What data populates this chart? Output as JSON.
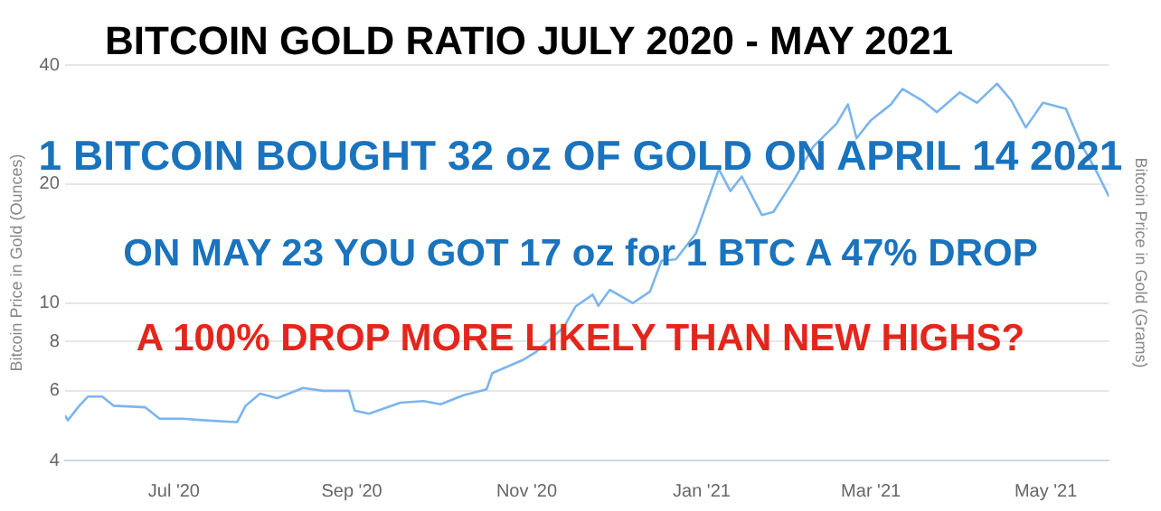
{
  "chart_data": {
    "type": "line",
    "title": "BITCOIN GOLD RATIO JULY 2020 - MAY 2021",
    "ylabel": "Bitcoin Price in Gold (Ounces)",
    "y2label": "Bitcoin Price in Gold (Grams)",
    "annotations": [
      "1 BITCOIN BOUGHT 32 oz OF GOLD ON APRIL  14 2021",
      "ON MAY 23 YOU GOT 17 oz for 1 BTC A 47% DROP",
      "A 100% DROP MORE LIKELY THAN NEW HIGHS?"
    ],
    "x": [
      "2020-05-24",
      "2020-05-25",
      "2020-05-29",
      "2020-06-01",
      "2020-06-06",
      "2020-06-10",
      "2020-06-21",
      "2020-06-26",
      "2020-07-04",
      "2020-07-12",
      "2020-07-23",
      "2020-07-26",
      "2020-07-31",
      "2020-08-06",
      "2020-08-15",
      "2020-08-22",
      "2020-08-31",
      "2020-09-02",
      "2020-09-07",
      "2020-09-18",
      "2020-09-26",
      "2020-10-02",
      "2020-10-10",
      "2020-10-18",
      "2020-10-20",
      "2020-10-31",
      "2020-11-04",
      "2020-11-14",
      "2020-11-18",
      "2020-11-24",
      "2020-11-26",
      "2020-11-30",
      "2020-12-08",
      "2020-12-14",
      "2020-12-18",
      "2020-12-23",
      "2020-12-30",
      "2021-01-07",
      "2021-01-11",
      "2021-01-15",
      "2021-01-22",
      "2021-01-26",
      "2021-02-02",
      "2021-02-09",
      "2021-02-17",
      "2021-02-21",
      "2021-02-24",
      "2021-03-01",
      "2021-03-08",
      "2021-03-12",
      "2021-03-19",
      "2021-03-24",
      "2021-04-01",
      "2021-04-07",
      "2021-04-14",
      "2021-04-19",
      "2021-04-24",
      "2021-04-30",
      "2021-05-08",
      "2021-05-13",
      "2021-05-19",
      "2021-05-23"
    ],
    "series": [
      {
        "color": "#7cb5ec",
        "values": [
          5.2,
          5.05,
          5.5,
          5.8,
          5.8,
          5.5,
          5.45,
          5.1,
          5.1,
          5.05,
          5.0,
          5.5,
          5.9,
          5.75,
          6.1,
          6.0,
          6.0,
          5.35,
          5.25,
          5.6,
          5.65,
          5.55,
          5.85,
          6.05,
          6.65,
          7.2,
          7.5,
          8.7,
          9.8,
          10.5,
          9.85,
          10.8,
          10.0,
          10.7,
          12.8,
          12.9,
          15.0,
          21.8,
          19.2,
          20.9,
          16.7,
          17.0,
          20.4,
          24.9,
          28.4,
          31.8,
          26.1,
          29.0,
          31.8,
          34.8,
          32.5,
          30.4,
          34.1,
          32.1,
          35.9,
          32.5,
          27.8,
          32.1,
          31.0,
          25.5,
          21.3,
          18.6
        ]
      }
    ],
    "xlim": [
      "2020-05-24",
      "2021-05-23"
    ],
    "xticks": [
      {
        "value": "2020-07-01",
        "label": "Jul '20"
      },
      {
        "value": "2020-09-01",
        "label": "Sep '20"
      },
      {
        "value": "2020-11-01",
        "label": "Nov '20"
      },
      {
        "value": "2021-01-01",
        "label": "Jan '21"
      },
      {
        "value": "2021-03-01",
        "label": "Mar '21"
      },
      {
        "value": "2021-05-01",
        "label": "May '21"
      }
    ],
    "log": "y",
    "ylim": [
      4,
      40
    ],
    "yticks": [
      4,
      6,
      8,
      10,
      20,
      40
    ],
    "grid": "y",
    "legend": false,
    "marker": "none",
    "line_style": "solid"
  }
}
